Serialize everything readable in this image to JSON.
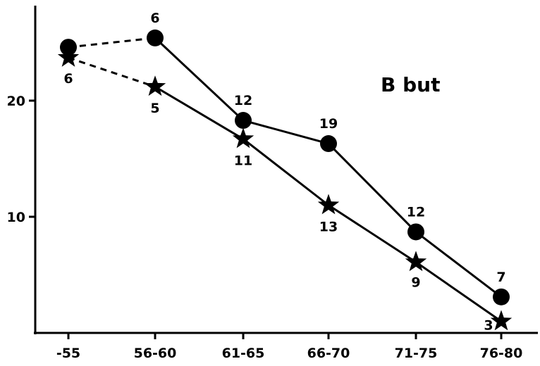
{
  "chart_data": {
    "type": "line",
    "title": "B but",
    "xlabel": "",
    "ylabel": "",
    "categories": [
      "-55",
      "56-60",
      "61-65",
      "66-70",
      "71-75",
      "76-80"
    ],
    "yticks": [
      10,
      20
    ],
    "ylim": [
      0,
      28.5
    ],
    "grid": false,
    "series": [
      {
        "marker": "circle",
        "values": [
          24.6,
          25.4,
          18.3,
          16.3,
          8.7,
          3.1
        ],
        "labels": [
          "",
          "6",
          "12",
          "19",
          "12",
          "7"
        ],
        "dashed_segments": [
          0
        ]
      },
      {
        "marker": "star",
        "values": [
          23.7,
          21.2,
          16.7,
          11.0,
          6.1,
          1.0
        ],
        "labels": [
          "6",
          "5",
          "11",
          "13",
          "9",
          "3"
        ],
        "dashed_segments": [
          0
        ]
      }
    ]
  }
}
